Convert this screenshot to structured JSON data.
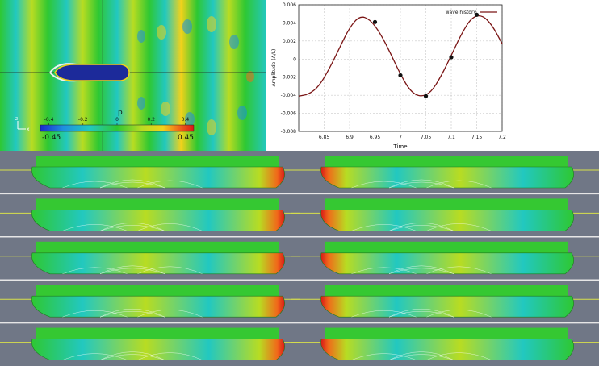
{
  "contour_panel": {
    "colorbar": {
      "variable": "p",
      "ticks": [
        "-0.4",
        "-0.2",
        "0",
        "0.2",
        "0.4"
      ],
      "min_label": "-0.45",
      "max_label": "0.45",
      "colors": [
        "#1a2acc",
        "#1e8fe0",
        "#22c8c0",
        "#2ec832",
        "#b8dc22",
        "#f2d21a",
        "#f06a1a",
        "#d81818"
      ]
    },
    "axis_letters": [
      "z",
      "x"
    ]
  },
  "chart_data": {
    "type": "line",
    "xlabel": "Time",
    "ylabel": "Amplitude (A/L)",
    "xlim": [
      6.8,
      7.2
    ],
    "ylim": [
      -0.008,
      0.006
    ],
    "xticks": [
      "6.85",
      "6.9",
      "6.95",
      "7",
      "7.05",
      "7.1",
      "7.15",
      "7.2"
    ],
    "yticks": [
      "0.006",
      "0.004",
      "0.002",
      "0",
      "-0.002",
      "-0.004",
      "-0.006",
      "-0.008"
    ],
    "grid": true,
    "legend_placement": "top-right",
    "series": [
      {
        "name": "wave history",
        "color": "#7a1414",
        "x": [
          6.8,
          6.82,
          6.84,
          6.86,
          6.88,
          6.9,
          6.92,
          6.94,
          6.96,
          6.98,
          7.0,
          7.02,
          7.04,
          7.06,
          7.08,
          7.1,
          7.12,
          7.14,
          7.16,
          7.18,
          7.2
        ],
        "y": [
          -0.0041,
          -0.0039,
          -0.003,
          -0.0011,
          0.0012,
          0.0035,
          0.0048,
          0.0044,
          0.0029,
          0.0007,
          -0.0017,
          -0.0036,
          -0.0042,
          -0.0037,
          -0.0019,
          0.0004,
          0.0028,
          0.0046,
          0.0049,
          0.0038,
          0.0017
        ]
      }
    ],
    "markers": [
      {
        "x": 6.95,
        "y": 0.0041
      },
      {
        "x": 7.0,
        "y": -0.0018
      },
      {
        "x": 7.05,
        "y": -0.0041
      },
      {
        "x": 7.1,
        "y": 0.0002
      },
      {
        "x": 7.15,
        "y": 0.0049
      }
    ]
  },
  "hull_panels": {
    "colors": {
      "hull": "#2ec42a",
      "background": "#707786",
      "deck": "#35c832"
    },
    "rows": 5,
    "columns": 2
  }
}
